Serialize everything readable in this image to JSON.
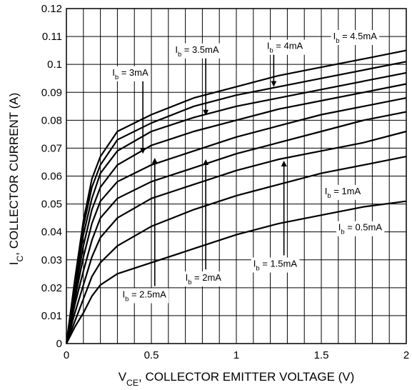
{
  "chart_data": {
    "type": "line",
    "xlabel": {
      "main": "V",
      "sub": "CE",
      "rest": ", COLLECTOR EMITTER VOLTAGE (V)"
    },
    "ylabel": {
      "main": "I",
      "sub": "C",
      "rest": ", COLLECTOR CURRENT (A)"
    },
    "xlim": [
      0,
      2
    ],
    "ylim": [
      0,
      0.12
    ],
    "xticks": [
      "0",
      "0.5",
      "1",
      "1.5",
      "2"
    ],
    "yticks": [
      "0",
      "0.01",
      "0.02",
      "0.03",
      "0.04",
      "0.05",
      "0.06",
      "0.07",
      "0.08",
      "0.09",
      "0.1",
      "0.11",
      "0.12"
    ],
    "grid": true,
    "series": [
      {
        "name": "Ib = 0.5mA",
        "label": {
          "main": "I",
          "sub": "b",
          "rest": " = 0.5mA"
        },
        "x": [
          0,
          0.05,
          0.1,
          0.15,
          0.2,
          0.3,
          0.5,
          0.75,
          1.0,
          1.25,
          1.5,
          1.75,
          2.0
        ],
        "y": [
          0,
          0.006,
          0.011,
          0.017,
          0.021,
          0.025,
          0.029,
          0.034,
          0.039,
          0.043,
          0.046,
          0.049,
          0.051
        ]
      },
      {
        "name": "Ib = 1mA",
        "label": {
          "main": "I",
          "sub": "b",
          "rest": " = 1mA"
        },
        "x": [
          0,
          0.05,
          0.1,
          0.15,
          0.2,
          0.3,
          0.5,
          0.75,
          1.0,
          1.25,
          1.5,
          1.75,
          2.0
        ],
        "y": [
          0,
          0.008,
          0.016,
          0.024,
          0.029,
          0.035,
          0.042,
          0.048,
          0.053,
          0.057,
          0.061,
          0.064,
          0.067
        ]
      },
      {
        "name": "Ib = 1.5mA",
        "label": {
          "main": "I",
          "sub": "b",
          "rest": " = 1.5mA"
        },
        "x": [
          0,
          0.05,
          0.1,
          0.15,
          0.2,
          0.3,
          0.5,
          0.75,
          1.0,
          1.25,
          1.5,
          1.75,
          2.0
        ],
        "y": [
          0,
          0.011,
          0.021,
          0.031,
          0.038,
          0.045,
          0.052,
          0.057,
          0.062,
          0.066,
          0.069,
          0.072,
          0.076
        ]
      },
      {
        "name": "Ib = 2mA",
        "label": {
          "main": "I",
          "sub": "b",
          "rest": " = 2mA"
        },
        "x": [
          0,
          0.05,
          0.1,
          0.15,
          0.2,
          0.3,
          0.5,
          0.75,
          1.0,
          1.25,
          1.5,
          1.75,
          2.0
        ],
        "y": [
          0,
          0.014,
          0.026,
          0.037,
          0.045,
          0.052,
          0.058,
          0.063,
          0.068,
          0.072,
          0.076,
          0.08,
          0.083
        ]
      },
      {
        "name": "Ib = 2.5mA",
        "label": {
          "main": "I",
          "sub": "b",
          "rest": " = 2.5mA"
        },
        "x": [
          0,
          0.05,
          0.1,
          0.15,
          0.2,
          0.3,
          0.5,
          0.75,
          1.0,
          1.25,
          1.5,
          1.75,
          2.0
        ],
        "y": [
          0,
          0.016,
          0.031,
          0.043,
          0.051,
          0.058,
          0.064,
          0.069,
          0.074,
          0.078,
          0.082,
          0.085,
          0.088
        ]
      },
      {
        "name": "Ib = 3mA",
        "label": {
          "main": "I",
          "sub": "b",
          "rest": " = 3mA"
        },
        "x": [
          0,
          0.05,
          0.1,
          0.15,
          0.2,
          0.3,
          0.5,
          0.75,
          1.0,
          1.25,
          1.5,
          1.75,
          2.0
        ],
        "y": [
          0,
          0.018,
          0.035,
          0.048,
          0.056,
          0.064,
          0.071,
          0.076,
          0.08,
          0.084,
          0.087,
          0.09,
          0.093
        ]
      },
      {
        "name": "Ib = 3.5mA",
        "label": {
          "main": "I",
          "sub": "b",
          "rest": " = 3.5mA"
        },
        "x": [
          0,
          0.05,
          0.1,
          0.15,
          0.2,
          0.3,
          0.5,
          0.75,
          1.0,
          1.25,
          1.5,
          1.75,
          2.0
        ],
        "y": [
          0,
          0.02,
          0.039,
          0.052,
          0.061,
          0.069,
          0.076,
          0.081,
          0.085,
          0.088,
          0.091,
          0.094,
          0.097
        ]
      },
      {
        "name": "Ib = 4mA",
        "label": {
          "main": "I",
          "sub": "b",
          "rest": " = 4mA"
        },
        "x": [
          0,
          0.05,
          0.1,
          0.15,
          0.2,
          0.3,
          0.5,
          0.75,
          1.0,
          1.25,
          1.5,
          1.75,
          2.0
        ],
        "y": [
          0,
          0.022,
          0.042,
          0.056,
          0.064,
          0.073,
          0.079,
          0.085,
          0.089,
          0.092,
          0.095,
          0.098,
          0.101
        ]
      },
      {
        "name": "Ib = 4.5mA",
        "label": {
          "main": "I",
          "sub": "b",
          "rest": " = 4.5mA"
        },
        "x": [
          0,
          0.05,
          0.1,
          0.15,
          0.2,
          0.3,
          0.5,
          0.75,
          1.0,
          1.25,
          1.5,
          1.75,
          2.0
        ],
        "y": [
          0,
          0.023,
          0.044,
          0.059,
          0.067,
          0.076,
          0.082,
          0.088,
          0.092,
          0.096,
          0.099,
          0.102,
          0.105
        ]
      }
    ],
    "annotations": [
      {
        "series": 8,
        "text_at": [
          1.57,
          0.109
        ],
        "align": "start",
        "arrow": false
      },
      {
        "series": 7,
        "text_at": [
          1.18,
          0.1055
        ],
        "align": "start",
        "arrow_to": [
          1.22,
          0.0925
        ]
      },
      {
        "series": 6,
        "text_at": [
          0.64,
          0.1042
        ],
        "align": "start",
        "arrow_to": [
          0.82,
          0.0822
        ]
      },
      {
        "series": 5,
        "text_at": [
          0.27,
          0.096
        ],
        "align": "start",
        "arrow_to": [
          0.45,
          0.0685
        ]
      },
      {
        "series": 4,
        "text_at": [
          0.33,
          0.0165
        ],
        "align": "start",
        "arrow_to": [
          0.52,
          0.066
        ]
      },
      {
        "series": 3,
        "text_at": [
          0.7,
          0.0225
        ],
        "align": "start",
        "arrow_to": [
          0.82,
          0.0655
        ]
      },
      {
        "series": 2,
        "text_at": [
          1.1,
          0.0275
        ],
        "align": "start",
        "arrow_to": [
          1.28,
          0.065
        ]
      },
      {
        "series": 1,
        "text_at": [
          1.52,
          0.0535
        ],
        "align": "start",
        "arrow": false
      },
      {
        "series": 0,
        "text_at": [
          1.6,
          0.0405
        ],
        "align": "start",
        "arrow": false
      }
    ]
  }
}
